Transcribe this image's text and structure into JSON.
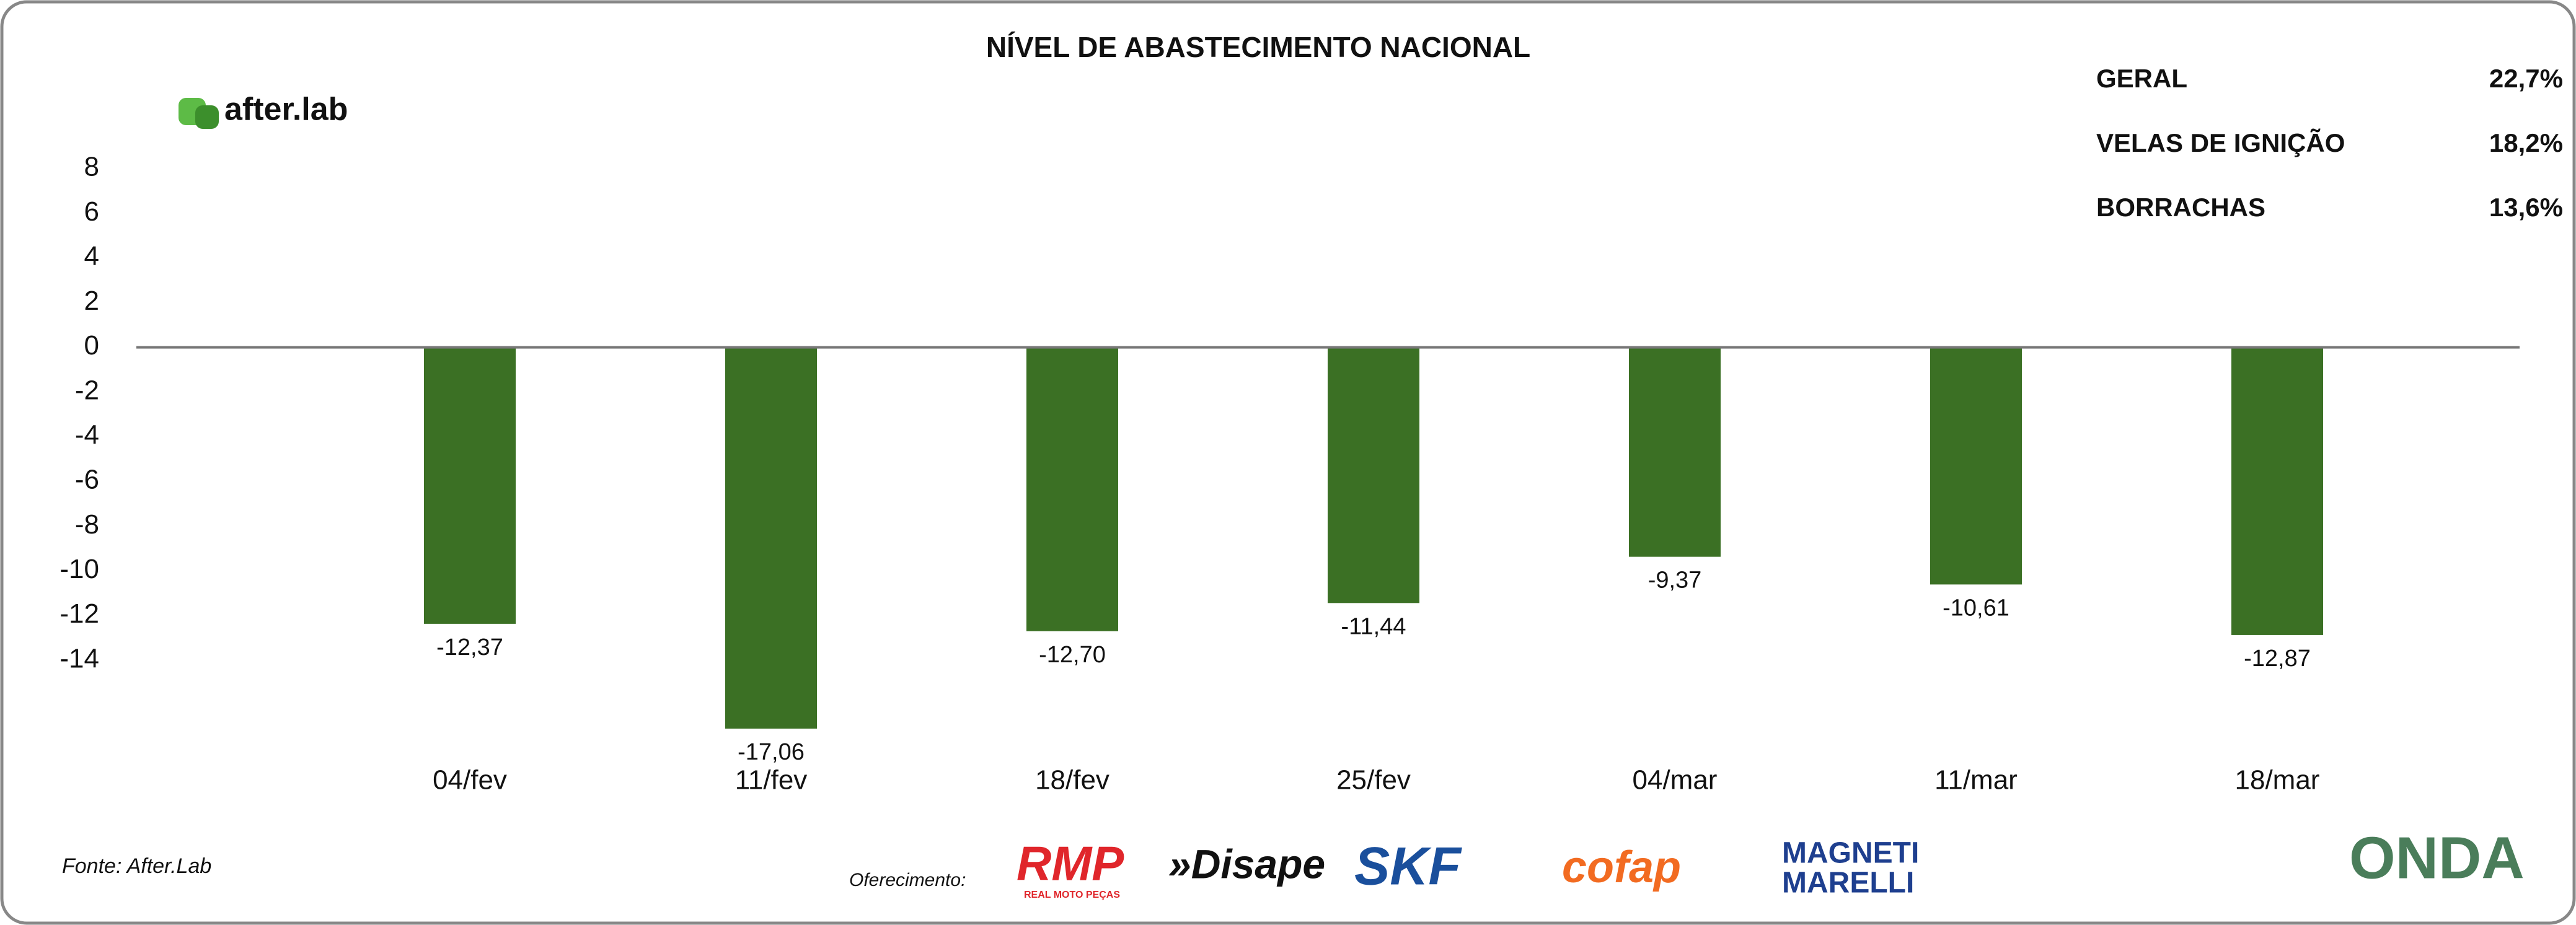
{
  "chart_data": {
    "type": "bar",
    "title": "NÍVEL DE ABASTECIMENTO NACIONAL",
    "categories": [
      "04/fev",
      "11/fev",
      "18/fev",
      "25/fev",
      "04/mar",
      "11/mar",
      "18/mar"
    ],
    "values": [
      -12.37,
      -17.06,
      -12.7,
      -11.44,
      -9.37,
      -10.61,
      -12.87
    ],
    "value_labels": [
      "-12,37",
      "-17,06",
      "-12,70",
      "-11,44",
      "-9,37",
      "-10,61",
      "-12,87"
    ],
    "color": "#3b7024",
    "ylim": [
      -18,
      8
    ],
    "yticks": [
      8,
      6,
      4,
      2,
      0,
      -2,
      -4,
      -6,
      -8,
      -10,
      -12,
      -14
    ],
    "grid": false
  },
  "summary": [
    {
      "label": "GERAL",
      "value": "22,7%"
    },
    {
      "label": "VELAS DE IGNIÇÃO",
      "value": "18,2%"
    },
    {
      "label": "BORRACHAS",
      "value": "13,6%"
    }
  ],
  "brand": "after.lab",
  "source": "Fonte: After.Lab",
  "sponsor_label": "Oferecimento:",
  "sponsors": [
    "RMP",
    "REAL MOTO PEÇAS",
    "»Disape",
    "SKF",
    "cofap",
    "MAGNETI",
    "MARELLI",
    "ONDA"
  ]
}
